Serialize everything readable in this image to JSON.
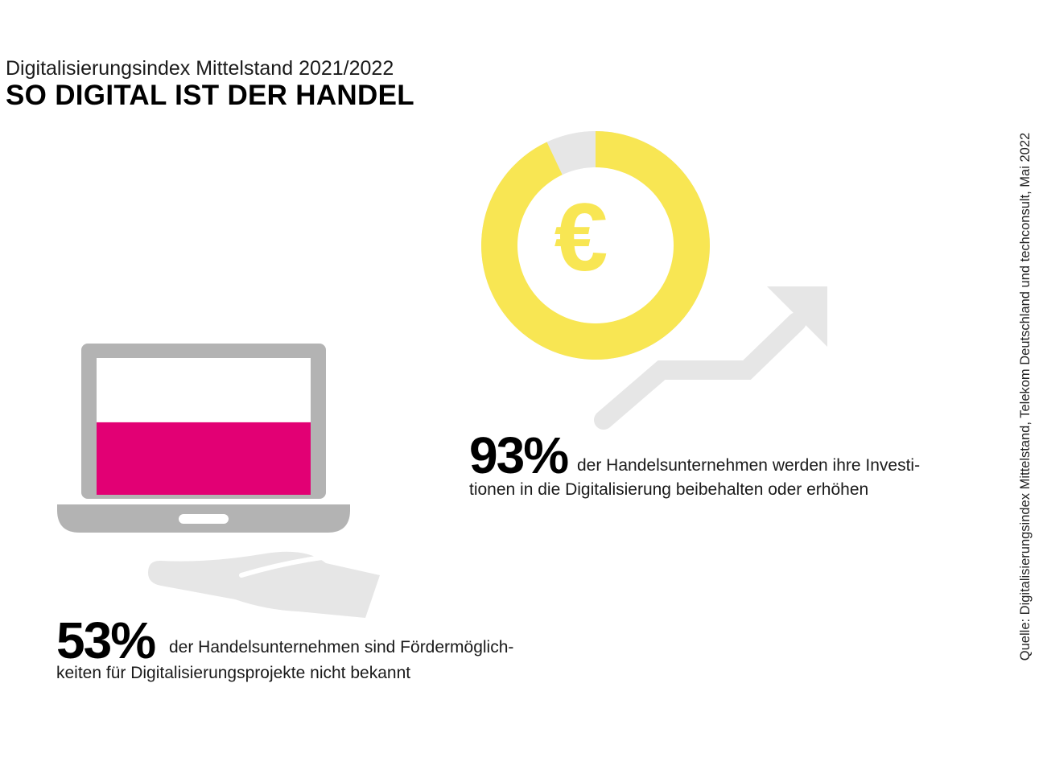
{
  "header": {
    "subtitle": "Digitalisierungsindex Mittelstand 2021/2022",
    "title": "SO DIGITAL IST DER HANDEL"
  },
  "source": "Quelle: Digitalisierungsindex Mittelstand, Telekom Deutschland und techconsult, Mai 2022",
  "icons": {
    "donut": "euro-donut-icon",
    "arrow": "trend-arrow-icon",
    "laptop": "laptop-icon",
    "hand": "hand-icon",
    "currency_symbol": "€"
  },
  "colors": {
    "yellow": "#F8E653",
    "magenta": "#E20074",
    "gray": "#B3B3B3",
    "light_gray": "#E6E6E6"
  },
  "stats": {
    "investment": {
      "value": "93%",
      "line1": "der Handelsunternehmen werden ihre Investi-",
      "line2": "tionen in die Digitalisierung beibehalten oder erhöhen",
      "fraction": 0.93
    },
    "funding": {
      "value": "53%",
      "line1": "der Handelsunternehmen sind Fördermöglich-",
      "line2": "keiten für Digitalisierungsprojekte nicht bekannt",
      "fraction": 0.53
    }
  }
}
